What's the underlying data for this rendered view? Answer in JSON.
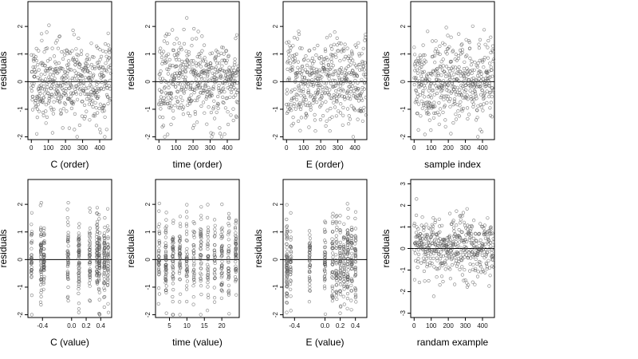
{
  "figure": {
    "point_color": "#555555",
    "zero_line_color": "#000000"
  },
  "chart_data": [
    {
      "type": "scatter",
      "xlabel": "C (order)",
      "ylabel": "residuals",
      "x_source": "index",
      "xlim": [
        -20,
        470
      ],
      "ylim": [
        -2.1,
        2.9
      ],
      "xticks": [
        0,
        100,
        200,
        300,
        400
      ],
      "xtick_labels": [
        "0",
        "100",
        "200",
        "300",
        "400"
      ],
      "yticks": [
        -2,
        -1,
        0,
        1,
        2
      ],
      "ytick_labels": [
        "-2",
        "-1",
        "0",
        "1",
        "2"
      ],
      "hline": 0,
      "n": 470,
      "seed": 11
    },
    {
      "type": "scatter",
      "xlabel": "time (order)",
      "ylabel": "residuals",
      "x_source": "index",
      "xlim": [
        -20,
        470
      ],
      "ylim": [
        -2.1,
        2.9
      ],
      "xticks": [
        0,
        100,
        200,
        300,
        400
      ],
      "xtick_labels": [
        "0",
        "100",
        "200",
        "300",
        "400"
      ],
      "yticks": [
        -2,
        -1,
        0,
        1,
        2
      ],
      "ytick_labels": [
        "-2",
        "-1",
        "0",
        "1",
        "2"
      ],
      "hline": 0,
      "n": 470,
      "seed": 23
    },
    {
      "type": "scatter",
      "xlabel": "E (order)",
      "ylabel": "residuals",
      "x_source": "index",
      "xlim": [
        -20,
        470
      ],
      "ylim": [
        -2.1,
        2.9
      ],
      "xticks": [
        0,
        100,
        200,
        300,
        400
      ],
      "xtick_labels": [
        "0",
        "100",
        "200",
        "300",
        "400"
      ],
      "yticks": [
        -2,
        -1,
        0,
        1,
        2
      ],
      "ytick_labels": [
        "-2",
        "-1",
        "0",
        "1",
        "2"
      ],
      "hline": 0,
      "n": 470,
      "seed": 37
    },
    {
      "type": "scatter",
      "xlabel": "sample index",
      "ylabel": "residuals",
      "x_source": "index",
      "xlim": [
        -20,
        470
      ],
      "ylim": [
        -2.1,
        2.9
      ],
      "xticks": [
        0,
        100,
        200,
        300,
        400
      ],
      "xtick_labels": [
        "0",
        "100",
        "200",
        "300",
        "400"
      ],
      "yticks": [
        -2,
        -1,
        0,
        1,
        2
      ],
      "ytick_labels": [
        "-2",
        "-1",
        "0",
        "1",
        "2"
      ],
      "hline": 0,
      "n": 470,
      "seed": 41
    },
    {
      "type": "scatter",
      "xlabel": "C (value)",
      "ylabel": "residuals",
      "x_source": "clustered",
      "clusters": [
        -0.55,
        -0.42,
        -0.38,
        -0.05,
        0.1,
        0.25,
        0.35,
        0.38,
        0.45,
        0.5
      ],
      "xlim": [
        -0.6,
        0.55
      ],
      "ylim": [
        -2.1,
        2.9
      ],
      "xticks": [
        -0.4,
        0.0,
        0.2,
        0.4
      ],
      "xtick_labels": [
        "-0.4",
        "0.0",
        "0.2",
        "0.4"
      ],
      "yticks": [
        -2,
        -1,
        0,
        1,
        2
      ],
      "ytick_labels": [
        "-2",
        "-1",
        "0",
        "1",
        "2"
      ],
      "hline": 0,
      "n": 470,
      "seed": 53
    },
    {
      "type": "scatter",
      "xlabel": "time (value)",
      "ylabel": "residuals",
      "x_source": "clustered",
      "clusters": [
        2,
        4,
        6,
        8,
        10,
        12,
        14,
        16,
        18,
        20,
        22,
        24
      ],
      "xlim": [
        1,
        25
      ],
      "ylim": [
        -2.1,
        2.9
      ],
      "xticks": [
        5,
        10,
        15,
        20
      ],
      "xtick_labels": [
        "5",
        "10",
        "15",
        "20"
      ],
      "yticks": [
        -2,
        -1,
        0,
        1,
        2
      ],
      "ytick_labels": [
        "-2",
        "-1",
        "0",
        "1",
        "2"
      ],
      "hline": 0,
      "n": 470,
      "seed": 67
    },
    {
      "type": "scatter",
      "xlabel": "E (value)",
      "ylabel": "residuals",
      "x_source": "clustered",
      "clusters": [
        -0.5,
        -0.5,
        -0.45,
        -0.2,
        0.0,
        0.1,
        0.15,
        0.2,
        0.25,
        0.3,
        0.35,
        0.4
      ],
      "xlim": [
        -0.55,
        0.55
      ],
      "ylim": [
        -2.1,
        2.9
      ],
      "xticks": [
        -0.4,
        0.0,
        0.2,
        0.4
      ],
      "xtick_labels": [
        "-0.4",
        "0.0",
        "0.2",
        "0.4"
      ],
      "yticks": [
        -2,
        -1,
        0,
        1,
        2
      ],
      "ytick_labels": [
        "-2",
        "-1",
        "0",
        "1",
        "2"
      ],
      "hline": 0,
      "n": 470,
      "seed": 79
    },
    {
      "type": "scatter",
      "xlabel": "randam example",
      "ylabel": "residuals",
      "x_source": "index",
      "xlim": [
        -20,
        470
      ],
      "ylim": [
        -3.2,
        3.2
      ],
      "xticks": [
        0,
        100,
        200,
        300,
        400
      ],
      "xtick_labels": [
        "0",
        "100",
        "200",
        "300",
        "400"
      ],
      "yticks": [
        -3,
        -2,
        -1,
        0,
        1,
        2,
        3
      ],
      "ytick_labels": [
        "-3",
        "-2",
        "-1",
        "0",
        "1",
        "2",
        "3"
      ],
      "hline": 0,
      "n": 470,
      "seed": 97
    }
  ]
}
